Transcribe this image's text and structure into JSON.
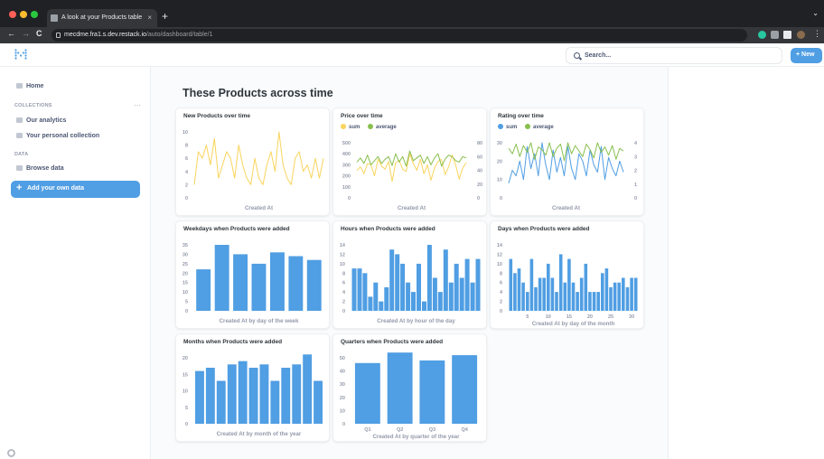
{
  "browser": {
    "tab_title": "A look at your Products table",
    "tab_close": "×",
    "new_tab": "+",
    "tab_menu": "⌄",
    "url_host": "mecdme.fra1.s.dev.restack.io",
    "url_path": "/auto/dashboard/table/1",
    "nav_back": "←",
    "nav_forward": "→",
    "nav_reload": "C"
  },
  "header": {
    "search_placeholder": "Search...",
    "new_label": "+ New"
  },
  "sidebar": {
    "home": "Home",
    "collections_heading": "COLLECTIONS",
    "more": "···",
    "our_analytics": "Our analytics",
    "personal_collection": "Your personal collection",
    "data_heading": "DATA",
    "browse_data": "Browse data",
    "add_data": "Add your own data",
    "add_data_plus": "+"
  },
  "dashboard": {
    "title": "These Products across time"
  },
  "colors": {
    "accent": "#509ee3",
    "yellow": "#f9d45c",
    "green": "#88bf4d"
  },
  "chart_data": [
    {
      "id": "new_products",
      "type": "line",
      "title": "New Products over time",
      "xlabel": "Created At",
      "ylabel": "",
      "ylim": [
        0,
        10
      ],
      "yticks": [
        "0",
        "2",
        "4",
        "6",
        "8",
        "10"
      ],
      "series": [
        {
          "name": "count",
          "color": "#f9d45c",
          "values": [
            2,
            7,
            6,
            8,
            5,
            9,
            3,
            5,
            7,
            6,
            3,
            8,
            5,
            3,
            2,
            6,
            3,
            2,
            5,
            7,
            4,
            10,
            5,
            3,
            2,
            6,
            7,
            4,
            5,
            3,
            6,
            3,
            6
          ]
        }
      ]
    },
    {
      "id": "price",
      "type": "line",
      "title": "Price over time",
      "xlabel": "Created At",
      "legend": [
        "sum",
        "average"
      ],
      "ylim": [
        0,
        500
      ],
      "yticks": [
        "0",
        "100",
        "200",
        "300",
        "400",
        "500"
      ],
      "y2lim": [
        0,
        80
      ],
      "y2ticks": [
        "0",
        "20",
        "40",
        "60",
        "80"
      ],
      "series": [
        {
          "name": "sum",
          "color": "#f9d45c",
          "values": [
            250,
            280,
            220,
            310,
            300,
            200,
            350,
            290,
            260,
            330,
            150,
            320,
            340,
            260,
            240,
            400,
            310,
            250,
            350,
            220,
            300,
            160,
            270,
            330,
            350,
            210,
            280,
            390,
            300,
            170,
            270,
            320
          ]
        },
        {
          "name": "average",
          "color": "#88bf4d",
          "values": [
            52,
            58,
            50,
            62,
            48,
            54,
            60,
            50,
            56,
            60,
            47,
            64,
            52,
            60,
            46,
            68,
            54,
            58,
            62,
            50,
            60,
            48,
            58,
            64,
            46,
            56,
            62,
            60,
            54,
            52,
            60,
            58
          ]
        }
      ]
    },
    {
      "id": "rating",
      "type": "line",
      "title": "Rating over time",
      "xlabel": "Created At",
      "legend": [
        "sum",
        "average"
      ],
      "ylim": [
        0,
        30
      ],
      "yticks": [
        "0",
        "10",
        "20",
        "30"
      ],
      "y2lim": [
        0,
        4
      ],
      "y2ticks": [
        "0",
        "1",
        "2",
        "3",
        "4"
      ],
      "series": [
        {
          "name": "sum",
          "color": "#509ee3",
          "values": [
            8,
            15,
            12,
            20,
            10,
            28,
            16,
            24,
            12,
            30,
            18,
            10,
            26,
            14,
            22,
            12,
            28,
            16,
            10,
            24,
            20,
            12,
            26,
            18,
            14,
            28,
            10,
            22,
            16,
            12,
            20,
            14
          ]
        },
        {
          "name": "average",
          "color": "#88bf4d",
          "values": [
            3.6,
            3.2,
            3.9,
            3.0,
            3.8,
            3.3,
            4.0,
            2.8,
            3.7,
            3.5,
            3.1,
            4.0,
            3.0,
            3.6,
            3.9,
            2.7,
            4.0,
            3.2,
            3.8,
            3.4,
            3.0,
            3.9,
            3.5,
            2.9,
            4.0,
            3.3,
            3.7,
            3.1,
            3.8,
            2.8,
            3.6,
            3.4
          ]
        }
      ]
    },
    {
      "id": "weekdays",
      "type": "bar",
      "title": "Weekdays when Products were added",
      "xlabel": "Created At by day of the week",
      "ylim": [
        0,
        35
      ],
      "yticks": [
        "0",
        "5",
        "10",
        "15",
        "20",
        "25",
        "30",
        "35"
      ],
      "xticks": [],
      "values": [
        22,
        35,
        30,
        25,
        31,
        29,
        27
      ]
    },
    {
      "id": "hours",
      "type": "bar",
      "title": "Hours when Products were added",
      "xlabel": "Created At by hour of the day",
      "ylim": [
        0,
        14
      ],
      "yticks": [
        "0",
        "2",
        "4",
        "6",
        "8",
        "10",
        "12",
        "14"
      ],
      "xticks": [],
      "values": [
        9,
        9,
        8,
        3,
        6,
        2,
        5,
        13,
        12,
        10,
        6,
        4,
        10,
        2,
        14,
        7,
        4,
        13,
        6,
        10,
        7,
        11,
        6,
        11
      ]
    },
    {
      "id": "days",
      "type": "bar",
      "title": "Days when Products were added",
      "xlabel": "Created At by day of the month",
      "ylim": [
        0,
        14
      ],
      "yticks": [
        "0",
        "2",
        "4",
        "6",
        "8",
        "10",
        "12",
        "14"
      ],
      "xticks": [
        "5",
        "10",
        "15",
        "20",
        "25",
        "30"
      ],
      "xtick_positions": [
        5,
        10,
        15,
        20,
        25,
        30
      ],
      "values": [
        11,
        8,
        9,
        6,
        4,
        11,
        5,
        7,
        7,
        10,
        7,
        4,
        12,
        6,
        11,
        6,
        4,
        7,
        10,
        4,
        4,
        4,
        8,
        9,
        5,
        6,
        6,
        7,
        5,
        7,
        7
      ]
    },
    {
      "id": "months",
      "type": "bar",
      "title": "Months when Products were added",
      "xlabel": "Created At by month of the year",
      "ylim": [
        0,
        20
      ],
      "yticks": [
        "0",
        "5",
        "10",
        "15",
        "20"
      ],
      "xticks": [],
      "values": [
        16,
        17,
        13,
        18,
        19,
        17,
        18,
        13,
        17,
        18,
        21,
        13
      ]
    },
    {
      "id": "quarters",
      "type": "bar",
      "title": "Quarters when Products were added",
      "xlabel": "Created At by quarter of the year",
      "ylim": [
        0,
        50
      ],
      "yticks": [
        "0",
        "10",
        "20",
        "30",
        "40",
        "50"
      ],
      "xticks": [
        "Q1",
        "Q2",
        "Q3",
        "Q4"
      ],
      "xtick_positions": [
        1,
        2,
        3,
        4
      ],
      "values": [
        46,
        54,
        48,
        52
      ]
    }
  ]
}
